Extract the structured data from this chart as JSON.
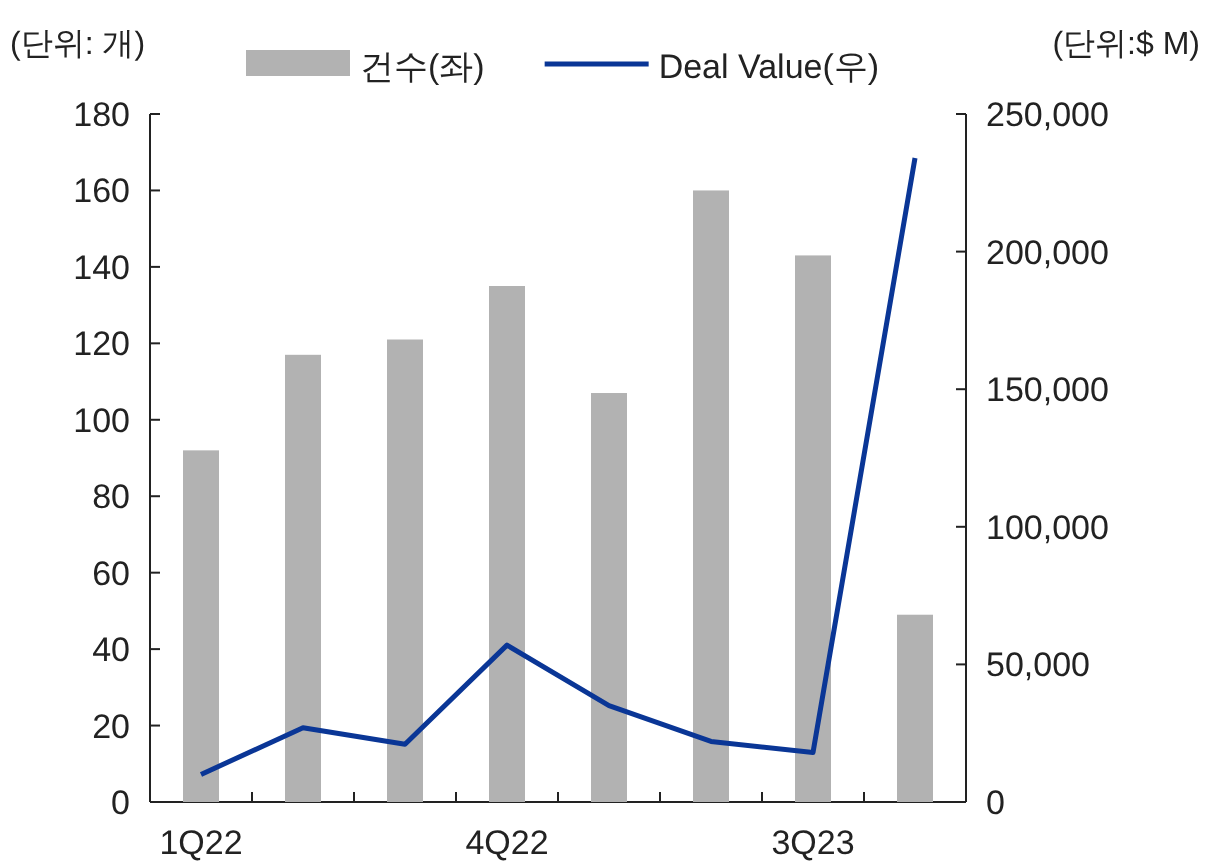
{
  "chart_data": {
    "type": "bar",
    "categories": [
      "1Q22",
      null,
      null,
      "4Q22",
      null,
      null,
      "3Q23",
      null
    ],
    "ylabel": "(단위: 개)",
    "y2label": "(단위:$ M)",
    "series": [
      {
        "name": "건수(좌)",
        "color": "#b2b2b2",
        "values": [
          92,
          117,
          121,
          135,
          107,
          160,
          143,
          49
        ]
      },
      {
        "name": "Deal Value(우)",
        "type": "line",
        "axis": "y2",
        "color": "#0a3696",
        "values": [
          10000,
          27000,
          21000,
          57000,
          35000,
          22000,
          18000,
          234000
        ]
      }
    ],
    "ylim": [
      0,
      180
    ],
    "yticks": [
      0,
      20,
      40,
      60,
      80,
      100,
      120,
      140,
      160,
      180
    ],
    "y2lim": [
      0,
      250000
    ],
    "y2ticks": [
      {
        "value": 0,
        "label": "0"
      },
      {
        "value": 50000,
        "label": "50,000"
      },
      {
        "value": 100000,
        "label": "100,000"
      },
      {
        "value": 150000,
        "label": "150,000"
      },
      {
        "value": 200000,
        "label": "200,000"
      },
      {
        "value": 250000,
        "label": "250,000"
      }
    ],
    "legend": "top",
    "grid": false
  }
}
